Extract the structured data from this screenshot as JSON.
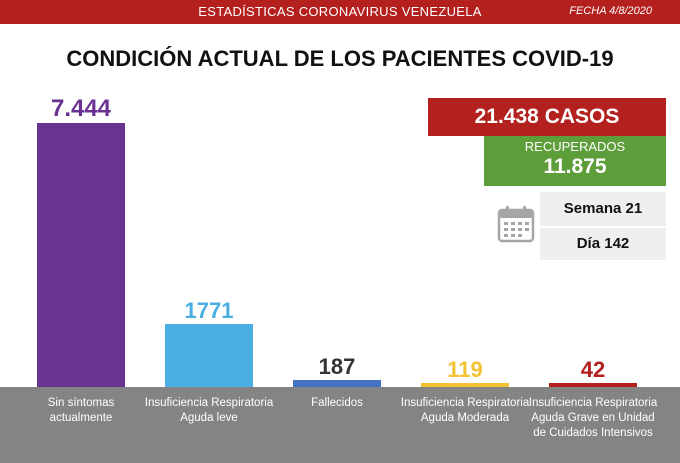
{
  "header": {
    "title": "ESTADÍSTICAS CORONAVIRUS VENEZUELA",
    "date": "FECHA 4/8/2020"
  },
  "chart_data": {
    "type": "bar",
    "title": "CONDICIÓN ACTUAL DE LOS PACIENTES COVID-19",
    "categories": [
      "Sin síntomas actualmente",
      "Insuficiencia Respiratoria Aguda leve",
      "Fallecidos",
      "Insuficiencia Respiratoria Aguda Moderada",
      "Insuficiencia Respiratoria Aguda Grave en Unidad de Cuidados Intensivos"
    ],
    "values": [
      7444,
      1771,
      187,
      119,
      42
    ],
    "value_labels": [
      "7.444",
      "1771",
      "187",
      "119",
      "42"
    ],
    "colors": [
      "#6a3291",
      "#4aaee3",
      "#4472c4",
      "#f1c232",
      "#b3201e"
    ],
    "label_colors": [
      "#6a3291",
      "#4aaee3",
      "#333333",
      "#f1c232",
      "#b3201e"
    ],
    "ylim": [
      0,
      7444
    ],
    "grid": false,
    "legend": false
  },
  "summary": {
    "cases": "21.438 CASOS",
    "recovered_label": "RECUPERADOS",
    "recovered_value": "11.875",
    "week": "Semana 21",
    "day": "Día 142",
    "calendar_icon": "calendar-icon"
  },
  "colors": {
    "red": "#b3201e",
    "green": "#5e9e3a",
    "gray": "#848484"
  }
}
